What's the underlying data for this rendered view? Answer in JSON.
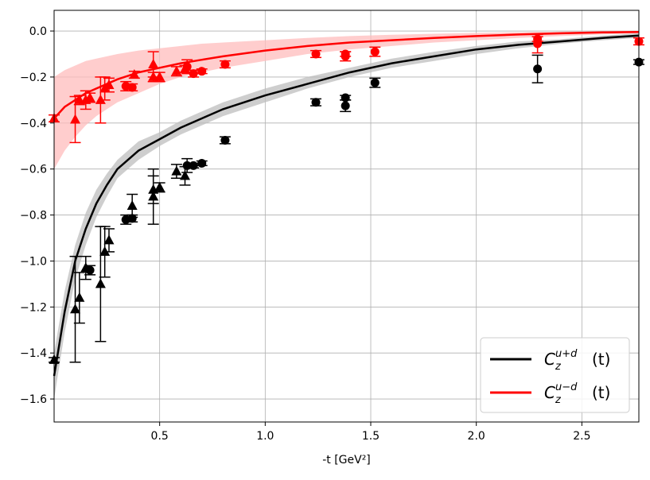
{
  "chart_data": {
    "type": "scatter",
    "title": "",
    "xlabel": "-t [GeV²]",
    "ylabel": "",
    "xlim": [
      0.0,
      2.77
    ],
    "ylim": [
      -1.7,
      0.09
    ],
    "grid": true,
    "legend_position": "bottom-right",
    "x_ticks": [
      0.5,
      1.0,
      1.5,
      2.0,
      2.5
    ],
    "x_tick_labels": [
      "0.5",
      "1.0",
      "1.5",
      "2.0",
      "2.5"
    ],
    "y_ticks": [
      0.0,
      -0.2,
      -0.4,
      -0.6,
      -0.8,
      -1.0,
      -1.2,
      -1.4,
      -1.6
    ],
    "y_tick_labels": [
      "0.0",
      "−0.2",
      "−0.4",
      "−0.6",
      "−0.8",
      "−1.0",
      "−1.2",
      "−1.4",
      "−1.6"
    ],
    "curves": [
      {
        "name": "C_z^{u+d}(t)",
        "legend_main": "C",
        "legend_sub": "z",
        "legend_sup": "u+d",
        "legend_arg": "(t)",
        "color": "#000000",
        "band_color": "#bdbdbd",
        "x": [
          0.0,
          0.05,
          0.1,
          0.15,
          0.2,
          0.25,
          0.3,
          0.4,
          0.5,
          0.6,
          0.7,
          0.8,
          1.0,
          1.2,
          1.4,
          1.6,
          1.8,
          2.0,
          2.2,
          2.4,
          2.6,
          2.77
        ],
        "y": [
          -1.5,
          -1.22,
          -1.0,
          -0.86,
          -0.75,
          -0.67,
          -0.6,
          -0.52,
          -0.47,
          -0.42,
          -0.38,
          -0.34,
          -0.28,
          -0.23,
          -0.18,
          -0.14,
          -0.11,
          -0.08,
          -0.06,
          -0.045,
          -0.03,
          -0.02
        ],
        "band_lower": [
          -1.6,
          -1.31,
          -1.08,
          -0.93,
          -0.81,
          -0.72,
          -0.64,
          -0.56,
          -0.5,
          -0.45,
          -0.41,
          -0.37,
          -0.31,
          -0.25,
          -0.2,
          -0.16,
          -0.13,
          -0.1,
          -0.075,
          -0.055,
          -0.04,
          -0.03
        ],
        "band_upper": [
          -1.4,
          -1.13,
          -0.93,
          -0.79,
          -0.69,
          -0.62,
          -0.56,
          -0.48,
          -0.44,
          -0.39,
          -0.35,
          -0.31,
          -0.25,
          -0.2,
          -0.16,
          -0.12,
          -0.09,
          -0.065,
          -0.045,
          -0.035,
          -0.02,
          -0.01
        ]
      },
      {
        "name": "C_z^{u-d}(t)",
        "legend_main": "C",
        "legend_sub": "z",
        "legend_sup": "u−d",
        "legend_arg": "(t)",
        "color": "#ff0000",
        "band_color": "#ffbcbc",
        "x": [
          0.0,
          0.05,
          0.1,
          0.15,
          0.2,
          0.25,
          0.3,
          0.4,
          0.5,
          0.6,
          0.7,
          0.8,
          1.0,
          1.2,
          1.4,
          1.6,
          1.8,
          2.0,
          2.2,
          2.4,
          2.6,
          2.77
        ],
        "y": [
          -0.38,
          -0.33,
          -0.3,
          -0.27,
          -0.25,
          -0.23,
          -0.21,
          -0.18,
          -0.16,
          -0.14,
          -0.125,
          -0.11,
          -0.085,
          -0.065,
          -0.05,
          -0.04,
          -0.03,
          -0.022,
          -0.015,
          -0.01,
          -0.006,
          -0.004
        ],
        "band_lower": [
          -0.6,
          -0.52,
          -0.46,
          -0.41,
          -0.37,
          -0.34,
          -0.31,
          -0.27,
          -0.23,
          -0.2,
          -0.18,
          -0.16,
          -0.13,
          -0.1,
          -0.08,
          -0.065,
          -0.05,
          -0.04,
          -0.03,
          -0.022,
          -0.015,
          -0.01
        ],
        "band_upper": [
          -0.2,
          -0.17,
          -0.15,
          -0.13,
          -0.12,
          -0.11,
          -0.1,
          -0.085,
          -0.075,
          -0.065,
          -0.055,
          -0.05,
          -0.04,
          -0.03,
          -0.022,
          -0.016,
          -0.012,
          -0.008,
          -0.005,
          -0.003,
          -0.001,
          0.0
        ]
      }
    ],
    "points": [
      {
        "series": "u-d",
        "marker": "triangle",
        "color": "#ff0000",
        "values": [
          [
            0.0,
            -0.38,
            0.015
          ],
          [
            0.1,
            -0.385,
            0.1
          ],
          [
            0.12,
            -0.3,
            0.02
          ],
          [
            0.15,
            -0.3,
            0.04
          ],
          [
            0.17,
            -0.29,
            0.02
          ],
          [
            0.22,
            -0.3,
            0.1
          ],
          [
            0.24,
            -0.25,
            0.05
          ],
          [
            0.26,
            -0.235,
            0.03
          ],
          [
            0.38,
            -0.19,
            0.015
          ],
          [
            0.47,
            -0.2,
            0.02
          ],
          [
            0.47,
            -0.145,
            0.055
          ],
          [
            0.5,
            -0.2,
            0.02
          ],
          [
            0.58,
            -0.175,
            0.02
          ],
          [
            0.62,
            -0.165,
            0.015
          ]
        ]
      },
      {
        "series": "u-d",
        "marker": "circle",
        "color": "#ff0000",
        "values": [
          [
            0.34,
            -0.24,
            0.02
          ],
          [
            0.37,
            -0.245,
            0.015
          ],
          [
            0.63,
            -0.155,
            0.03
          ],
          [
            0.66,
            -0.185,
            0.015
          ],
          [
            0.7,
            -0.175,
            0.01
          ],
          [
            0.81,
            -0.145,
            0.015
          ],
          [
            1.24,
            -0.1,
            0.015
          ],
          [
            1.38,
            -0.11,
            0.02
          ],
          [
            1.38,
            -0.1,
            0.01
          ],
          [
            1.52,
            -0.09,
            0.02
          ],
          [
            2.29,
            -0.055,
            0.04
          ],
          [
            2.29,
            -0.035,
            0.01
          ],
          [
            2.77,
            -0.045,
            0.015
          ]
        ]
      },
      {
        "series": "u+d",
        "marker": "triangle",
        "color": "#000000",
        "values": [
          [
            0.0,
            -1.43,
            0.01
          ],
          [
            0.1,
            -1.21,
            0.23
          ],
          [
            0.12,
            -1.16,
            0.11
          ],
          [
            0.15,
            -1.03,
            0.05
          ],
          [
            0.22,
            -1.1,
            0.25
          ],
          [
            0.24,
            -0.96,
            0.11
          ],
          [
            0.26,
            -0.91,
            0.05
          ],
          [
            0.37,
            -0.76,
            0.05
          ],
          [
            0.47,
            -0.72,
            0.12
          ],
          [
            0.47,
            -0.69,
            0.06
          ],
          [
            0.5,
            -0.68,
            0.02
          ],
          [
            0.58,
            -0.61,
            0.03
          ],
          [
            0.62,
            -0.63,
            0.04
          ]
        ]
      },
      {
        "series": "u+d",
        "marker": "circle",
        "color": "#000000",
        "values": [
          [
            0.17,
            -1.04,
            0.02
          ],
          [
            0.34,
            -0.82,
            0.02
          ],
          [
            0.37,
            -0.815,
            0.015
          ],
          [
            0.63,
            -0.585,
            0.03
          ],
          [
            0.66,
            -0.585,
            0.01
          ],
          [
            0.7,
            -0.575,
            0.01
          ],
          [
            0.81,
            -0.475,
            0.015
          ],
          [
            1.24,
            -0.31,
            0.015
          ],
          [
            1.38,
            -0.29,
            0.01
          ],
          [
            1.38,
            -0.325,
            0.025
          ],
          [
            1.52,
            -0.225,
            0.02
          ],
          [
            2.29,
            -0.165,
            0.06
          ],
          [
            2.77,
            -0.135,
            0.01
          ]
        ]
      }
    ]
  }
}
